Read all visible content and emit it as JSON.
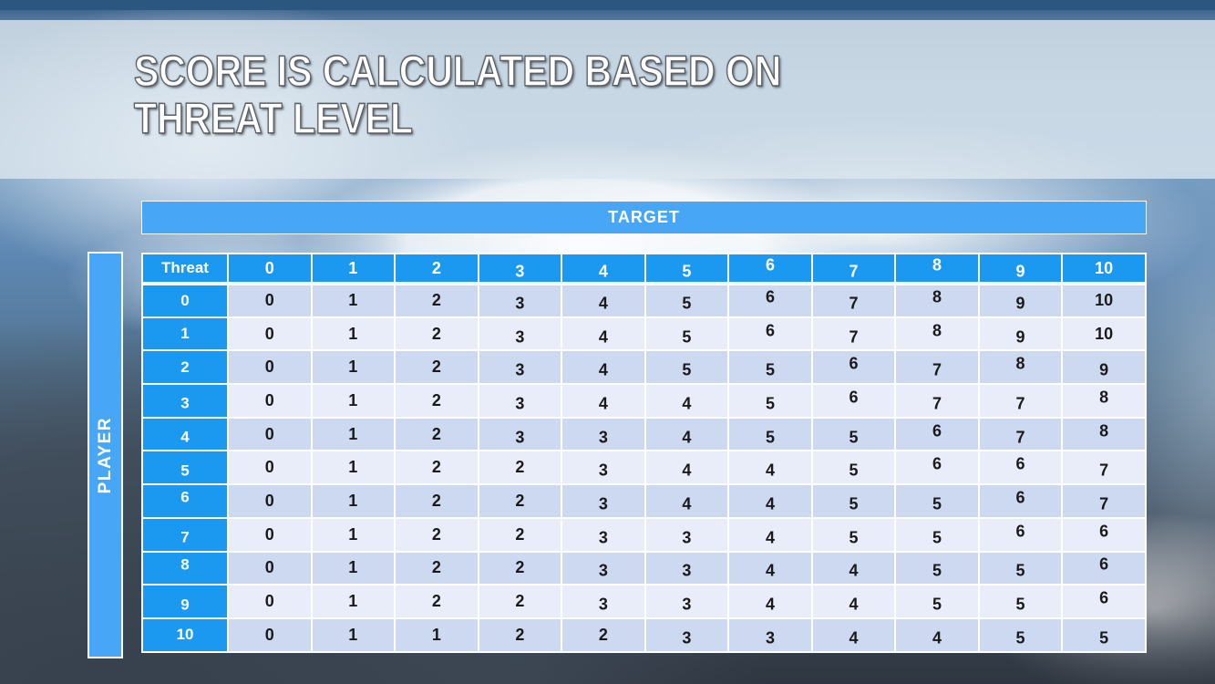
{
  "slide": {
    "title_line1": "SCORE IS CALCULATED BASED ON",
    "title_line2": "THREAT LEVEL"
  },
  "table": {
    "target_label": "TARGET",
    "player_label": "PLAYER",
    "corner_label": "Threat",
    "column_headers": [
      "0",
      "1",
      "2",
      "3",
      "4",
      "5",
      "6",
      "7",
      "8",
      "9",
      "10"
    ],
    "rows": [
      {
        "threat": "0",
        "values": [
          0,
          1,
          2,
          3,
          4,
          5,
          6,
          7,
          8,
          9,
          10
        ]
      },
      {
        "threat": "1",
        "values": [
          0,
          1,
          2,
          3,
          4,
          5,
          6,
          7,
          8,
          9,
          10
        ]
      },
      {
        "threat": "2",
        "values": [
          0,
          1,
          2,
          3,
          4,
          5,
          5,
          6,
          7,
          8,
          9
        ]
      },
      {
        "threat": "3",
        "values": [
          0,
          1,
          2,
          3,
          4,
          4,
          5,
          6,
          7,
          7,
          8
        ]
      },
      {
        "threat": "4",
        "values": [
          0,
          1,
          2,
          3,
          3,
          4,
          5,
          5,
          6,
          7,
          8
        ]
      },
      {
        "threat": "5",
        "values": [
          0,
          1,
          2,
          2,
          3,
          4,
          4,
          5,
          6,
          6,
          7
        ]
      },
      {
        "threat": "6",
        "values": [
          0,
          1,
          2,
          2,
          3,
          4,
          4,
          5,
          5,
          6,
          7
        ]
      },
      {
        "threat": "7",
        "values": [
          0,
          1,
          2,
          2,
          3,
          3,
          4,
          5,
          5,
          6,
          6
        ]
      },
      {
        "threat": "8",
        "values": [
          0,
          1,
          2,
          2,
          3,
          3,
          4,
          4,
          5,
          5,
          6
        ]
      },
      {
        "threat": "9",
        "values": [
          0,
          1,
          2,
          2,
          3,
          3,
          4,
          4,
          5,
          5,
          6
        ]
      },
      {
        "threat": "10",
        "values": [
          0,
          1,
          1,
          2,
          2,
          3,
          3,
          4,
          4,
          5,
          5
        ]
      }
    ]
  },
  "colors": {
    "top_bar": "#2A567F",
    "banner_blue": "#47A6F5",
    "header_blue": "#1B99F1",
    "row_alt_dark": "#CDD8F1",
    "row_alt_light": "#E9EDF9",
    "title_text": "#FFFFFF"
  }
}
